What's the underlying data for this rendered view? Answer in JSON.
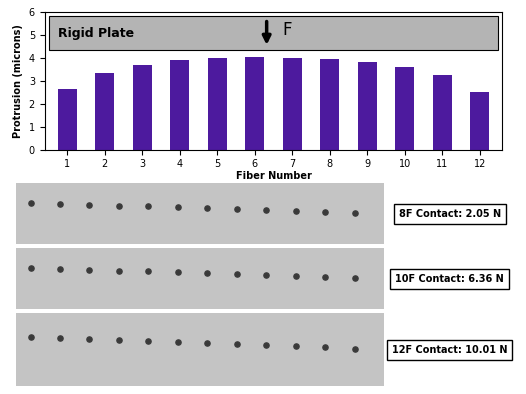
{
  "chart_data": {
    "type": "bar",
    "x_label": "Fiber Number",
    "y_label": "Protrusion (microns)",
    "categories": [
      "1",
      "2",
      "3",
      "4",
      "5",
      "6",
      "7",
      "8",
      "9",
      "10",
      "11",
      "12"
    ],
    "values": [
      2.65,
      3.35,
      3.7,
      3.9,
      4.0,
      4.05,
      4.0,
      3.95,
      3.8,
      3.6,
      3.25,
      2.5
    ],
    "color": "#4d1a9e",
    "ylim": [
      0,
      6
    ],
    "yticks": [
      0,
      1,
      2,
      3,
      4,
      5,
      6
    ],
    "annotations": [
      "Rigid Plate",
      "F"
    ]
  },
  "panels": [
    {
      "label": "8F Contact: 2.05 N"
    },
    {
      "label": "10F Contact: 6.36 N"
    },
    {
      "label": "12F Contact: 10.01 N"
    }
  ]
}
